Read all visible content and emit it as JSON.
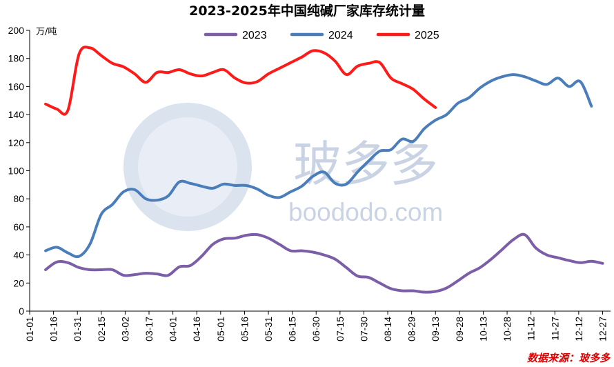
{
  "title": "2023-2025年中国纯碱厂家库存统计量",
  "unit": "万/吨",
  "source": "数据来源：玻多多",
  "watermark": {
    "cn": "玻多多",
    "en": "boododo.com"
  },
  "chart_data": {
    "type": "line",
    "title": "2023-2025年中国纯碱厂家库存统计量",
    "ylabel": "万/吨",
    "ylim": [
      0,
      200
    ],
    "yticks": [
      0,
      20,
      40,
      60,
      80,
      100,
      120,
      140,
      160,
      180,
      200
    ],
    "x_tick_labels": [
      "01-01",
      "01-16",
      "01-31",
      "02-15",
      "03-02",
      "03-17",
      "04-01",
      "04-16",
      "05-01",
      "05-16",
      "05-31",
      "06-15",
      "06-30",
      "07-15",
      "07-30",
      "08-14",
      "08-29",
      "09-13",
      "09-28",
      "10-13",
      "10-28",
      "11-12",
      "11-27",
      "12-12",
      "12-27"
    ],
    "x_unit": "day_of_year",
    "legend_position": "top",
    "grid": false,
    "series": [
      {
        "name": "2023",
        "color": "#7b5ea7",
        "x": [
          11,
          18,
          25,
          32,
          39,
          46,
          53,
          60,
          67,
          74,
          81,
          88,
          95,
          102,
          109,
          116,
          123,
          130,
          137,
          144,
          151,
          158,
          165,
          172,
          179,
          186,
          193,
          200,
          207,
          214,
          221,
          228,
          235,
          242,
          249,
          256,
          263,
          270,
          277,
          284,
          291,
          298,
          305,
          312,
          319,
          326,
          333,
          340,
          347,
          354,
          361
        ],
        "values": [
          29.5,
          35,
          34.5,
          31,
          29.5,
          29.5,
          29.5,
          25.5,
          26,
          27,
          26.5,
          25.5,
          31.5,
          32.5,
          39,
          47.5,
          51.5,
          52,
          54,
          54.5,
          52,
          47.5,
          43,
          43,
          42,
          40,
          37,
          31,
          25,
          24,
          20,
          16,
          14.5,
          14.5,
          13.5,
          14,
          16.5,
          21.5,
          27,
          31,
          37,
          44,
          51,
          54.5,
          45,
          40,
          38,
          36,
          34.5,
          35.5,
          34
        ]
      },
      {
        "name": "2024",
        "color": "#4a7ebb",
        "x": [
          11,
          18,
          25,
          32,
          39,
          46,
          53,
          60,
          67,
          74,
          81,
          88,
          95,
          102,
          109,
          116,
          123,
          130,
          137,
          144,
          151,
          158,
          165,
          172,
          179,
          186,
          193,
          200,
          207,
          214,
          221,
          228,
          235,
          242,
          249,
          256,
          263,
          270,
          277,
          284,
          291,
          298,
          305,
          312,
          319,
          326,
          333,
          340,
          347,
          354
        ],
        "values": [
          43,
          45.5,
          41.5,
          39,
          48,
          69,
          76,
          85,
          86.5,
          80,
          79,
          82,
          92,
          91,
          89,
          87.5,
          90.5,
          89.5,
          89.5,
          87,
          82.5,
          81,
          85,
          89,
          96,
          99,
          91,
          90.5,
          99,
          107,
          114,
          115,
          122.5,
          121,
          130,
          136,
          140,
          148,
          152,
          159,
          164,
          167,
          168.5,
          167,
          164,
          161.5,
          166,
          160,
          163.5,
          146
        ]
      },
      {
        "name": "2025",
        "color": "#ff1a1a",
        "x": [
          11,
          18,
          25,
          32,
          39,
          46,
          53,
          60,
          67,
          74,
          81,
          88,
          95,
          102,
          109,
          116,
          123,
          130,
          137,
          144,
          151,
          158,
          165,
          172,
          179,
          186,
          193,
          200,
          207,
          214,
          221,
          228,
          235,
          242,
          249,
          256
        ],
        "values": [
          147.5,
          144,
          143,
          183,
          187.5,
          182,
          176.5,
          174,
          169,
          163,
          170,
          170,
          172,
          169,
          167.5,
          170,
          172,
          166,
          162.5,
          163.5,
          169,
          173,
          177,
          181,
          185.5,
          184,
          178,
          168.5,
          174.5,
          176.5,
          177,
          166,
          162,
          158,
          151,
          145
        ]
      }
    ]
  }
}
